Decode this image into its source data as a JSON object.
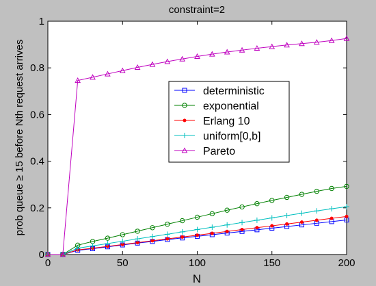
{
  "chart_data": {
    "type": "line",
    "title": "constraint=2",
    "xlabel": "N",
    "ylabel": "prob queue ≥ 15 before Nth request arrives",
    "xlim": [
      0,
      200
    ],
    "ylim": [
      0,
      1
    ],
    "xticks": [
      "0",
      "50",
      "100",
      "150",
      "200"
    ],
    "yticks": [
      "0",
      "0.2",
      "0.4",
      "0.6",
      "0.8",
      "1"
    ],
    "grid": false,
    "legend_position": "center-right",
    "x": [
      0,
      10,
      20,
      30,
      40,
      50,
      60,
      70,
      80,
      90,
      100,
      110,
      120,
      130,
      140,
      150,
      160,
      170,
      180,
      190,
      200
    ],
    "series": [
      {
        "name": "deterministic",
        "color": "#0000ff",
        "marker": "square",
        "values": [
          0,
          0,
          0.018,
          0.025,
          0.033,
          0.041,
          0.049,
          0.056,
          0.064,
          0.071,
          0.078,
          0.085,
          0.092,
          0.099,
          0.106,
          0.113,
          0.12,
          0.127,
          0.134,
          0.141,
          0.148
        ]
      },
      {
        "name": "exponential",
        "color": "#008000",
        "marker": "circle",
        "values": [
          0,
          0,
          0.04,
          0.056,
          0.07,
          0.085,
          0.1,
          0.115,
          0.13,
          0.145,
          0.16,
          0.175,
          0.19,
          0.204,
          0.218,
          0.232,
          0.245,
          0.258,
          0.271,
          0.283,
          0.292
        ]
      },
      {
        "name": "Erlang 10",
        "color": "#ff0000",
        "marker": "dot",
        "values": [
          0,
          0,
          0.02,
          0.027,
          0.035,
          0.043,
          0.051,
          0.059,
          0.067,
          0.075,
          0.083,
          0.091,
          0.099,
          0.107,
          0.115,
          0.123,
          0.131,
          0.139,
          0.147,
          0.155,
          0.163
        ]
      },
      {
        "name": "uniform[0,b]",
        "color": "#00bfbf",
        "marker": "plus",
        "values": [
          0,
          0,
          0.027,
          0.037,
          0.047,
          0.057,
          0.067,
          0.077,
          0.087,
          0.097,
          0.107,
          0.117,
          0.127,
          0.137,
          0.147,
          0.157,
          0.167,
          0.177,
          0.187,
          0.196,
          0.205
        ]
      },
      {
        "name": "Pareto",
        "color": "#bf00bf",
        "marker": "triangle",
        "values": [
          0,
          0,
          0.746,
          0.76,
          0.774,
          0.788,
          0.802,
          0.815,
          0.827,
          0.838,
          0.849,
          0.859,
          0.868,
          0.876,
          0.884,
          0.891,
          0.898,
          0.904,
          0.91,
          0.917,
          0.926
        ]
      }
    ]
  }
}
